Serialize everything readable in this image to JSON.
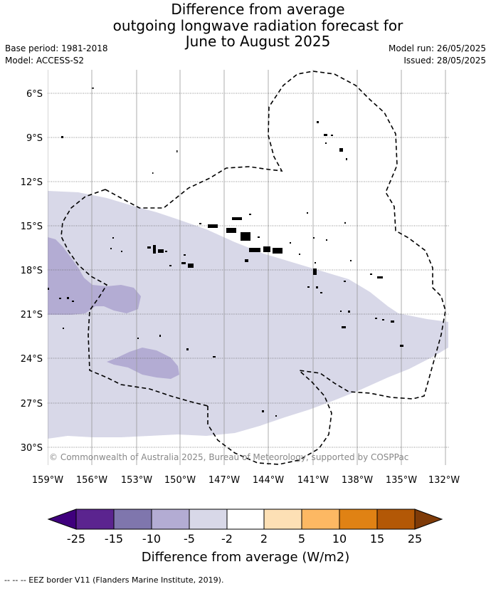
{
  "title": {
    "line1": "Difference from average",
    "line2": "outgoing longwave radiation forecast for",
    "line3": "June to August 2025"
  },
  "meta": {
    "base_period": "Base period: 1981-2018",
    "model": "Model: ACCESS-S2",
    "model_run": "Model run: 26/05/2025",
    "issued": "Issued: 28/05/2025"
  },
  "map": {
    "lat_labels": [
      "6°S",
      "9°S",
      "12°S",
      "15°S",
      "18°S",
      "21°S",
      "24°S",
      "27°S",
      "30°S"
    ],
    "lon_labels": [
      "159°W",
      "156°W",
      "153°W",
      "150°W",
      "147°W",
      "144°W",
      "141°W",
      "138°W",
      "135°W",
      "132°W"
    ],
    "copyright": "© Commonwealth of Australia 2025, Bureau of Meteorology, supported by COSPPac",
    "colors": {
      "anomaly_minus5_to_minus2": "#d8d8e8",
      "anomaly_minus10_to_minus5": "#b3acd3"
    }
  },
  "colorbar": {
    "ticks": [
      "-25",
      "-15",
      "-10",
      "-5",
      "-2",
      "2",
      "5",
      "10",
      "15",
      "25"
    ],
    "colors": [
      "#3f007d",
      "#5b248f",
      "#7f76ad",
      "#b3acd3",
      "#d8d8e8",
      "#ffffff",
      "#fde0b5",
      "#fdb863",
      "#e08214",
      "#b35806",
      "#7f3b08"
    ],
    "label": "Difference from average (W/m2)"
  },
  "legend": {
    "eez_text": "--  --  -- EEZ border V11 (Flanders Marine Institute, 2019)."
  }
}
